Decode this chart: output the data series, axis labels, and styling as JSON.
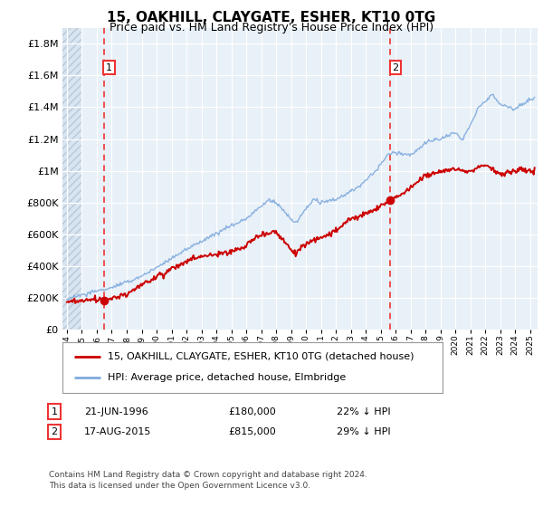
{
  "title": "15, OAKHILL, CLAYGATE, ESHER, KT10 0TG",
  "subtitle": "Price paid vs. HM Land Registry's House Price Index (HPI)",
  "legend_line1": "15, OAKHILL, CLAYGATE, ESHER, KT10 0TG (detached house)",
  "legend_line2": "HPI: Average price, detached house, Elmbridge",
  "annotation1_label": "1",
  "annotation1_date": "21-JUN-1996",
  "annotation1_price": "£180,000",
  "annotation1_hpi": "22% ↓ HPI",
  "annotation1_year": 1996.47,
  "annotation1_value": 180000,
  "annotation2_label": "2",
  "annotation2_date": "17-AUG-2015",
  "annotation2_price": "£815,000",
  "annotation2_hpi": "29% ↓ HPI",
  "annotation2_year": 2015.63,
  "annotation2_value": 815000,
  "footer": "Contains HM Land Registry data © Crown copyright and database right 2024.\nThis data is licensed under the Open Government Licence v3.0.",
  "hpi_color": "#7faadd",
  "price_color": "#cc0000",
  "dashed_color": "#ee3333",
  "background_color": "#e8f0f8",
  "hatch_bg": "#d0dce8",
  "ylim": [
    0,
    1900000
  ],
  "xlim_start": 1993.7,
  "xlim_end": 2025.5,
  "title_fontsize": 11,
  "subtitle_fontsize": 9
}
